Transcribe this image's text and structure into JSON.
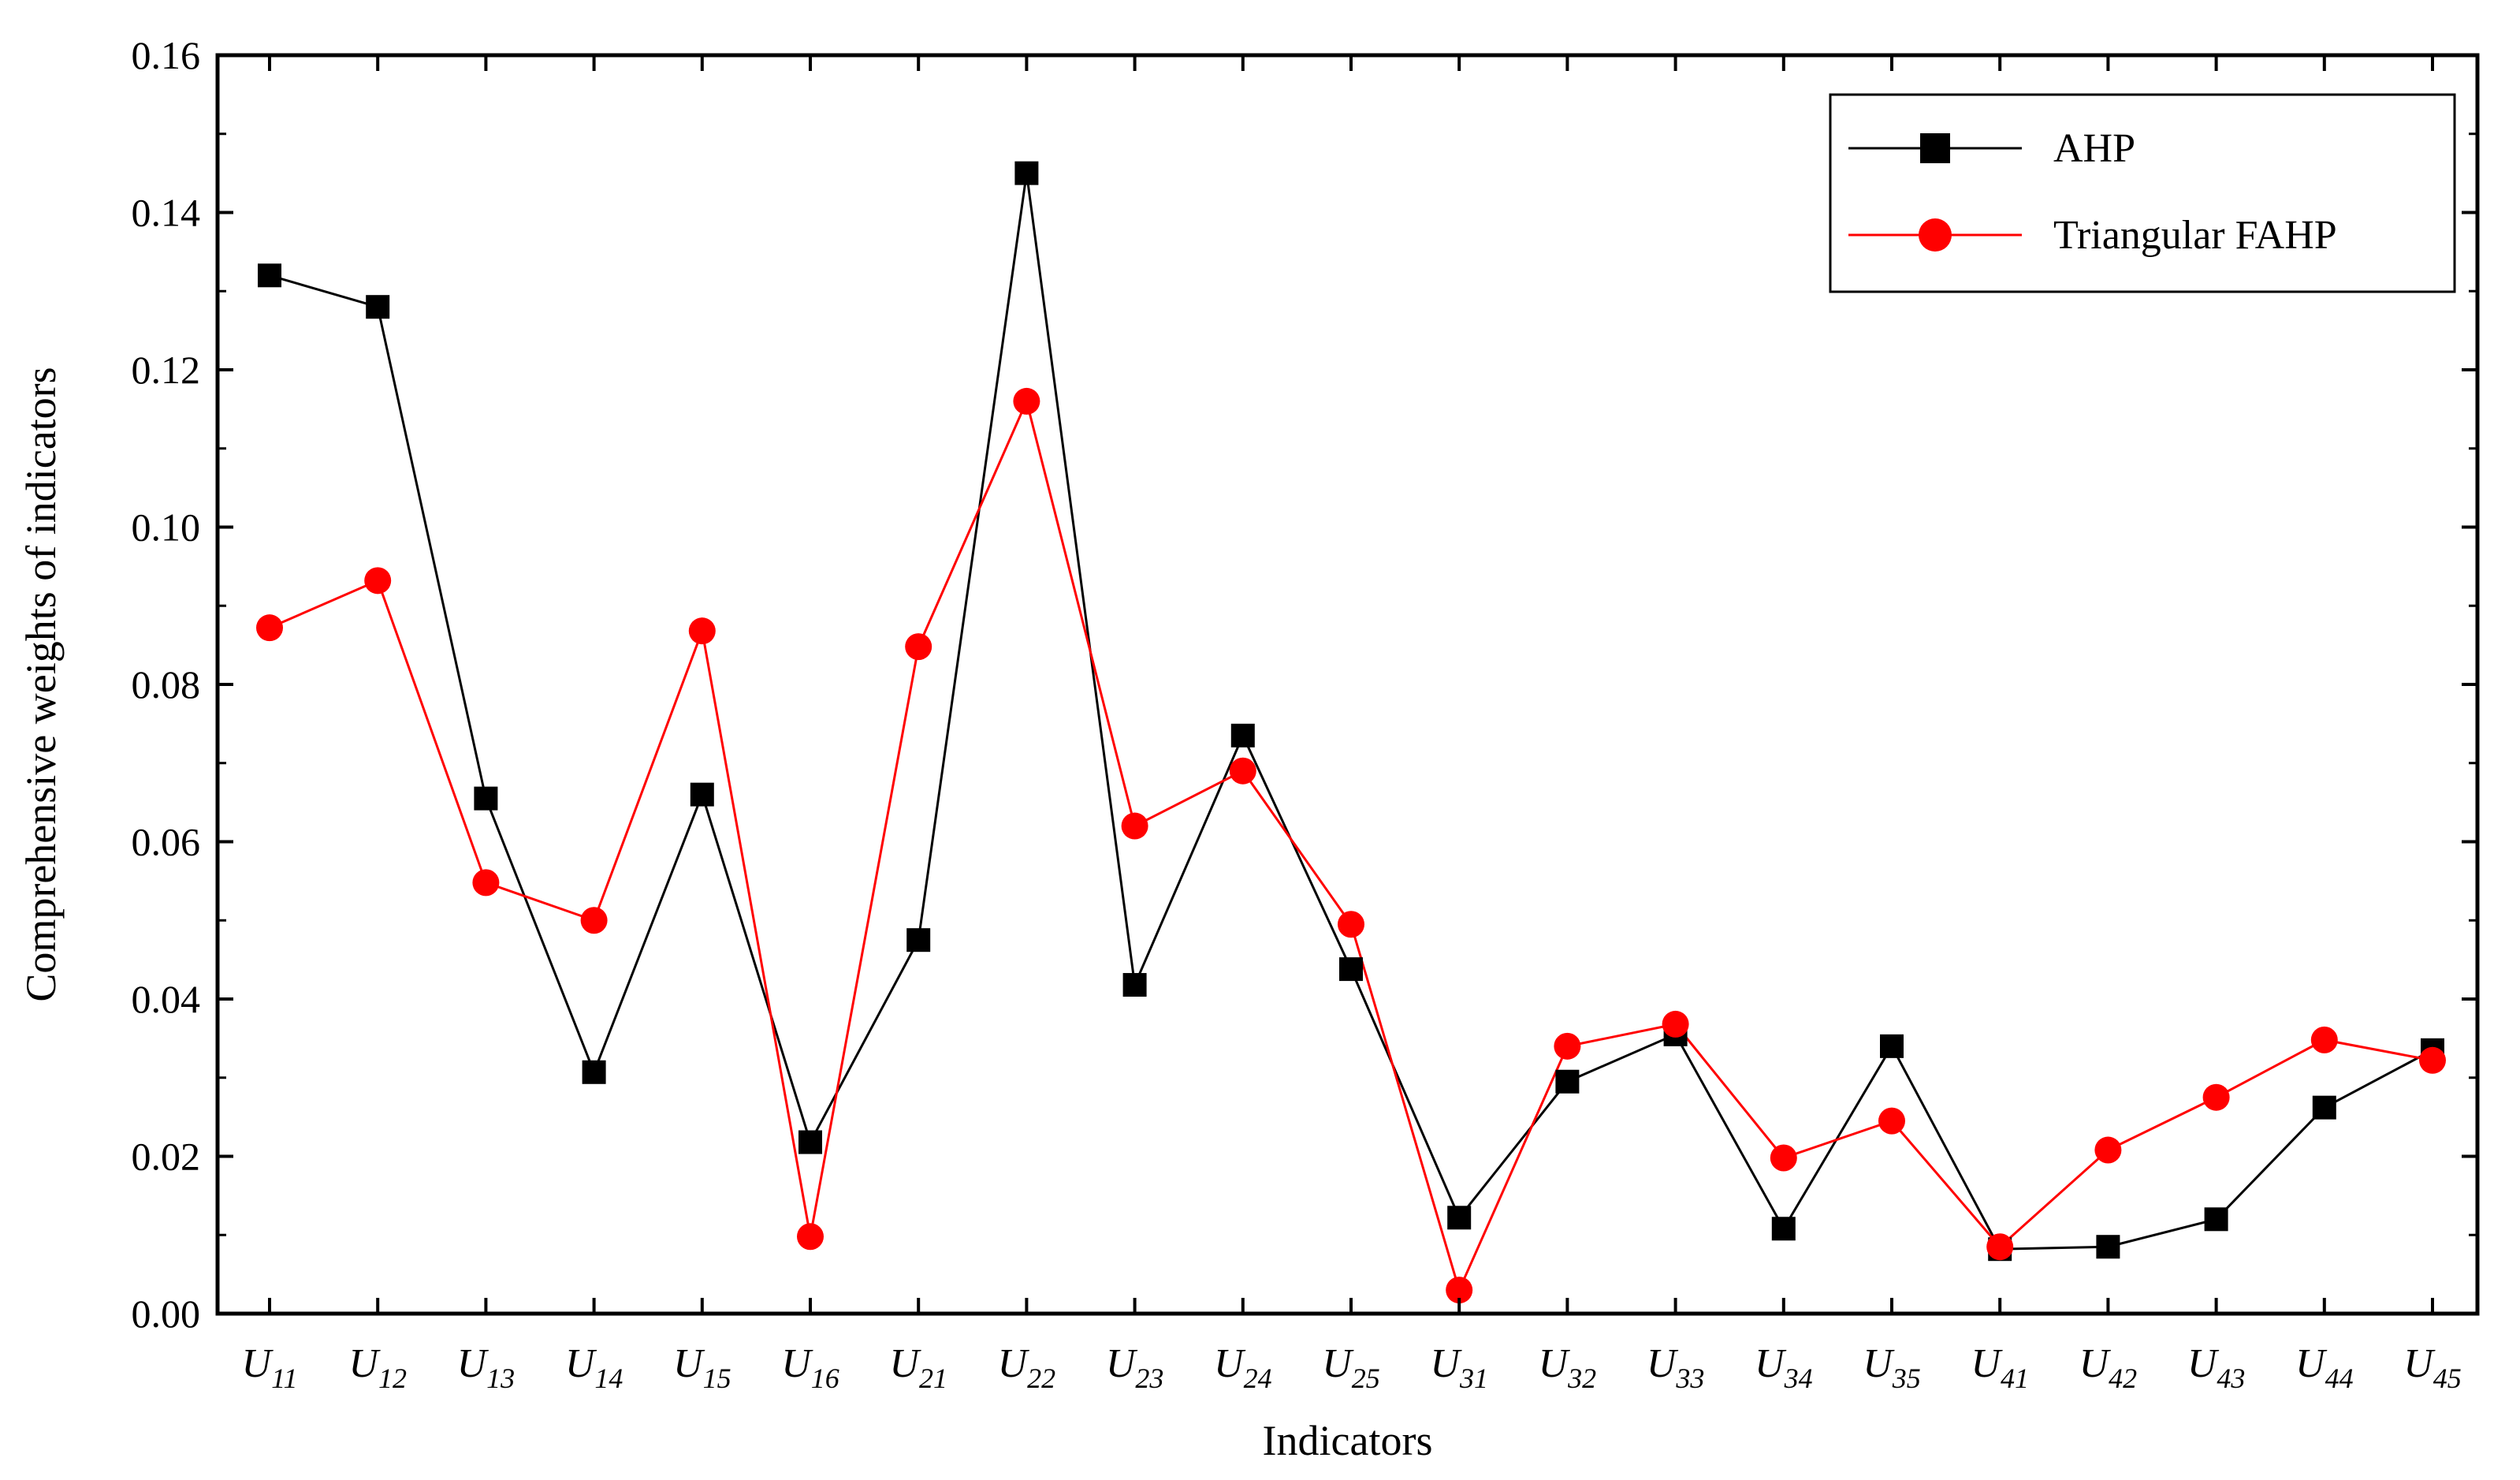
{
  "chart_data": {
    "type": "line",
    "xlabel": "Indicators",
    "ylabel": "Comprehensive weights of indicators",
    "ylim": [
      0,
      0.16
    ],
    "yticks": [
      "0.00",
      "0.02",
      "0.04",
      "0.06",
      "0.08",
      "0.10",
      "0.12",
      "0.14",
      "0.16"
    ],
    "categories": [
      {
        "base": "U",
        "sub": "11"
      },
      {
        "base": "U",
        "sub": "12"
      },
      {
        "base": "U",
        "sub": "13"
      },
      {
        "base": "U",
        "sub": "14"
      },
      {
        "base": "U",
        "sub": "15"
      },
      {
        "base": "U",
        "sub": "16"
      },
      {
        "base": "U",
        "sub": "21"
      },
      {
        "base": "U",
        "sub": "22"
      },
      {
        "base": "U",
        "sub": "23"
      },
      {
        "base": "U",
        "sub": "24"
      },
      {
        "base": "U",
        "sub": "25"
      },
      {
        "base": "U",
        "sub": "31"
      },
      {
        "base": "U",
        "sub": "32"
      },
      {
        "base": "U",
        "sub": "33"
      },
      {
        "base": "U",
        "sub": "34"
      },
      {
        "base": "U",
        "sub": "35"
      },
      {
        "base": "U",
        "sub": "41"
      },
      {
        "base": "U",
        "sub": "42"
      },
      {
        "base": "U",
        "sub": "43"
      },
      {
        "base": "U",
        "sub": "44"
      },
      {
        "base": "U",
        "sub": "45"
      }
    ],
    "series": [
      {
        "name": "AHP",
        "color": "#000000",
        "marker": "square",
        "values": [
          0.132,
          0.128,
          0.0655,
          0.0307,
          0.066,
          0.0218,
          0.0475,
          0.145,
          0.0418,
          0.0735,
          0.0438,
          0.0122,
          0.0295,
          0.0355,
          0.0108,
          0.034,
          0.0082,
          0.0085,
          0.012,
          0.0262,
          0.0335
        ]
      },
      {
        "name": "Triangular FAHP",
        "color": "#ff0000",
        "marker": "circle",
        "values": [
          0.0872,
          0.0932,
          0.0548,
          0.05,
          0.0868,
          0.0098,
          0.0848,
          0.116,
          0.062,
          0.069,
          0.0495,
          0.003,
          0.034,
          0.0368,
          0.0198,
          0.0245,
          0.0085,
          0.0208,
          0.0275,
          0.0348,
          0.0322
        ]
      }
    ],
    "grid": false,
    "legend_position": "top-right"
  }
}
